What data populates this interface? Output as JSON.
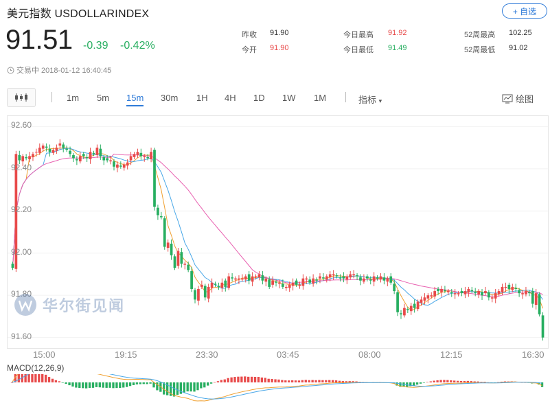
{
  "header": {
    "title": "美元指数  USDOLLARINDEX",
    "fav_label": "+ 自选",
    "price": "91.51",
    "change": "-0.39",
    "change_pct": "-0.42%",
    "status": "交易中 2018-01-12 16:40:45"
  },
  "stats": {
    "prev_close_label": "昨收",
    "prev_close": "91.90",
    "open_label": "今开",
    "open": "91.90",
    "high_label": "今日最高",
    "high": "91.92",
    "low_label": "今日最低",
    "low": "91.49",
    "w52_high_label": "52周最高",
    "w52_high": "102.25",
    "w52_low_label": "52周最低",
    "w52_low": "91.02"
  },
  "colors": {
    "up": "#e84a4a",
    "down": "#27ae60",
    "accent": "#2f7bd8",
    "ma_short": "#f0a030",
    "ma_mid": "#4aa8e8",
    "ma_long": "#e860b0"
  },
  "toolbar": {
    "timeframes": [
      "1m",
      "5m",
      "15m",
      "30m",
      "1H",
      "4H",
      "1D",
      "1W",
      "1M"
    ],
    "active": "15m",
    "indicator_label": "指标",
    "draw_label": "绘图"
  },
  "watermark": "华尔街见闻",
  "macd_label": "MACD(12,26,9)",
  "chart_data": {
    "type": "candlestick",
    "ylabels": [
      "92.60",
      "92.40",
      "92.20",
      "92.00",
      "91.80",
      "91.60"
    ],
    "ylim": [
      91.55,
      92.65
    ],
    "xlabels": [
      "15:00",
      "19:15",
      "23:30",
      "03:45",
      "08:00",
      "12:15",
      "16:30"
    ],
    "closes": [
      91.93,
      92.47,
      92.44,
      92.46,
      92.45,
      92.46,
      92.47,
      92.48,
      92.5,
      92.51,
      92.5,
      92.48,
      92.49,
      92.5,
      92.52,
      92.5,
      92.49,
      92.47,
      92.45,
      92.44,
      92.46,
      92.46,
      92.45,
      92.48,
      92.47,
      92.5,
      92.46,
      92.44,
      92.44,
      92.44,
      92.41,
      92.42,
      92.41,
      92.42,
      92.43,
      92.46,
      92.47,
      92.48,
      92.46,
      92.46,
      92.45,
      92.48,
      92.22,
      92.18,
      92.17,
      92.03,
      92.05,
      91.99,
      91.93,
      92.01,
      91.95,
      91.95,
      91.92,
      91.83,
      91.78,
      91.83,
      91.85,
      91.79,
      91.84,
      91.86,
      91.85,
      91.84,
      91.86,
      91.84,
      91.89,
      91.88,
      91.88,
      91.88,
      91.88,
      91.89,
      91.87,
      91.89,
      91.89,
      91.9,
      91.87,
      91.88,
      91.84,
      91.87,
      91.86,
      91.86,
      91.84,
      91.84,
      91.85,
      91.86,
      91.85,
      91.85,
      91.88,
      91.88,
      91.86,
      91.88,
      91.87,
      91.89,
      91.88,
      91.89,
      91.9,
      91.9,
      91.89,
      91.88,
      91.88,
      91.89,
      91.9,
      91.9,
      91.89,
      91.87,
      91.88,
      91.88,
      91.87,
      91.89,
      91.88,
      91.89,
      91.87,
      91.88,
      91.86,
      91.82,
      91.72,
      91.71,
      91.74,
      91.73,
      91.75,
      91.74,
      91.77,
      91.78,
      91.79,
      91.8,
      91.8,
      91.82,
      91.82,
      91.83,
      91.82,
      91.82,
      91.81,
      91.81,
      91.81,
      91.81,
      91.82,
      91.83,
      91.82,
      91.81,
      91.82,
      91.8,
      91.82,
      91.79,
      91.79,
      91.81,
      91.82,
      91.84,
      91.84,
      91.83,
      91.84,
      91.83,
      91.81,
      91.81,
      91.82,
      91.81,
      91.76,
      91.81,
      91.71,
      91.6
    ]
  }
}
